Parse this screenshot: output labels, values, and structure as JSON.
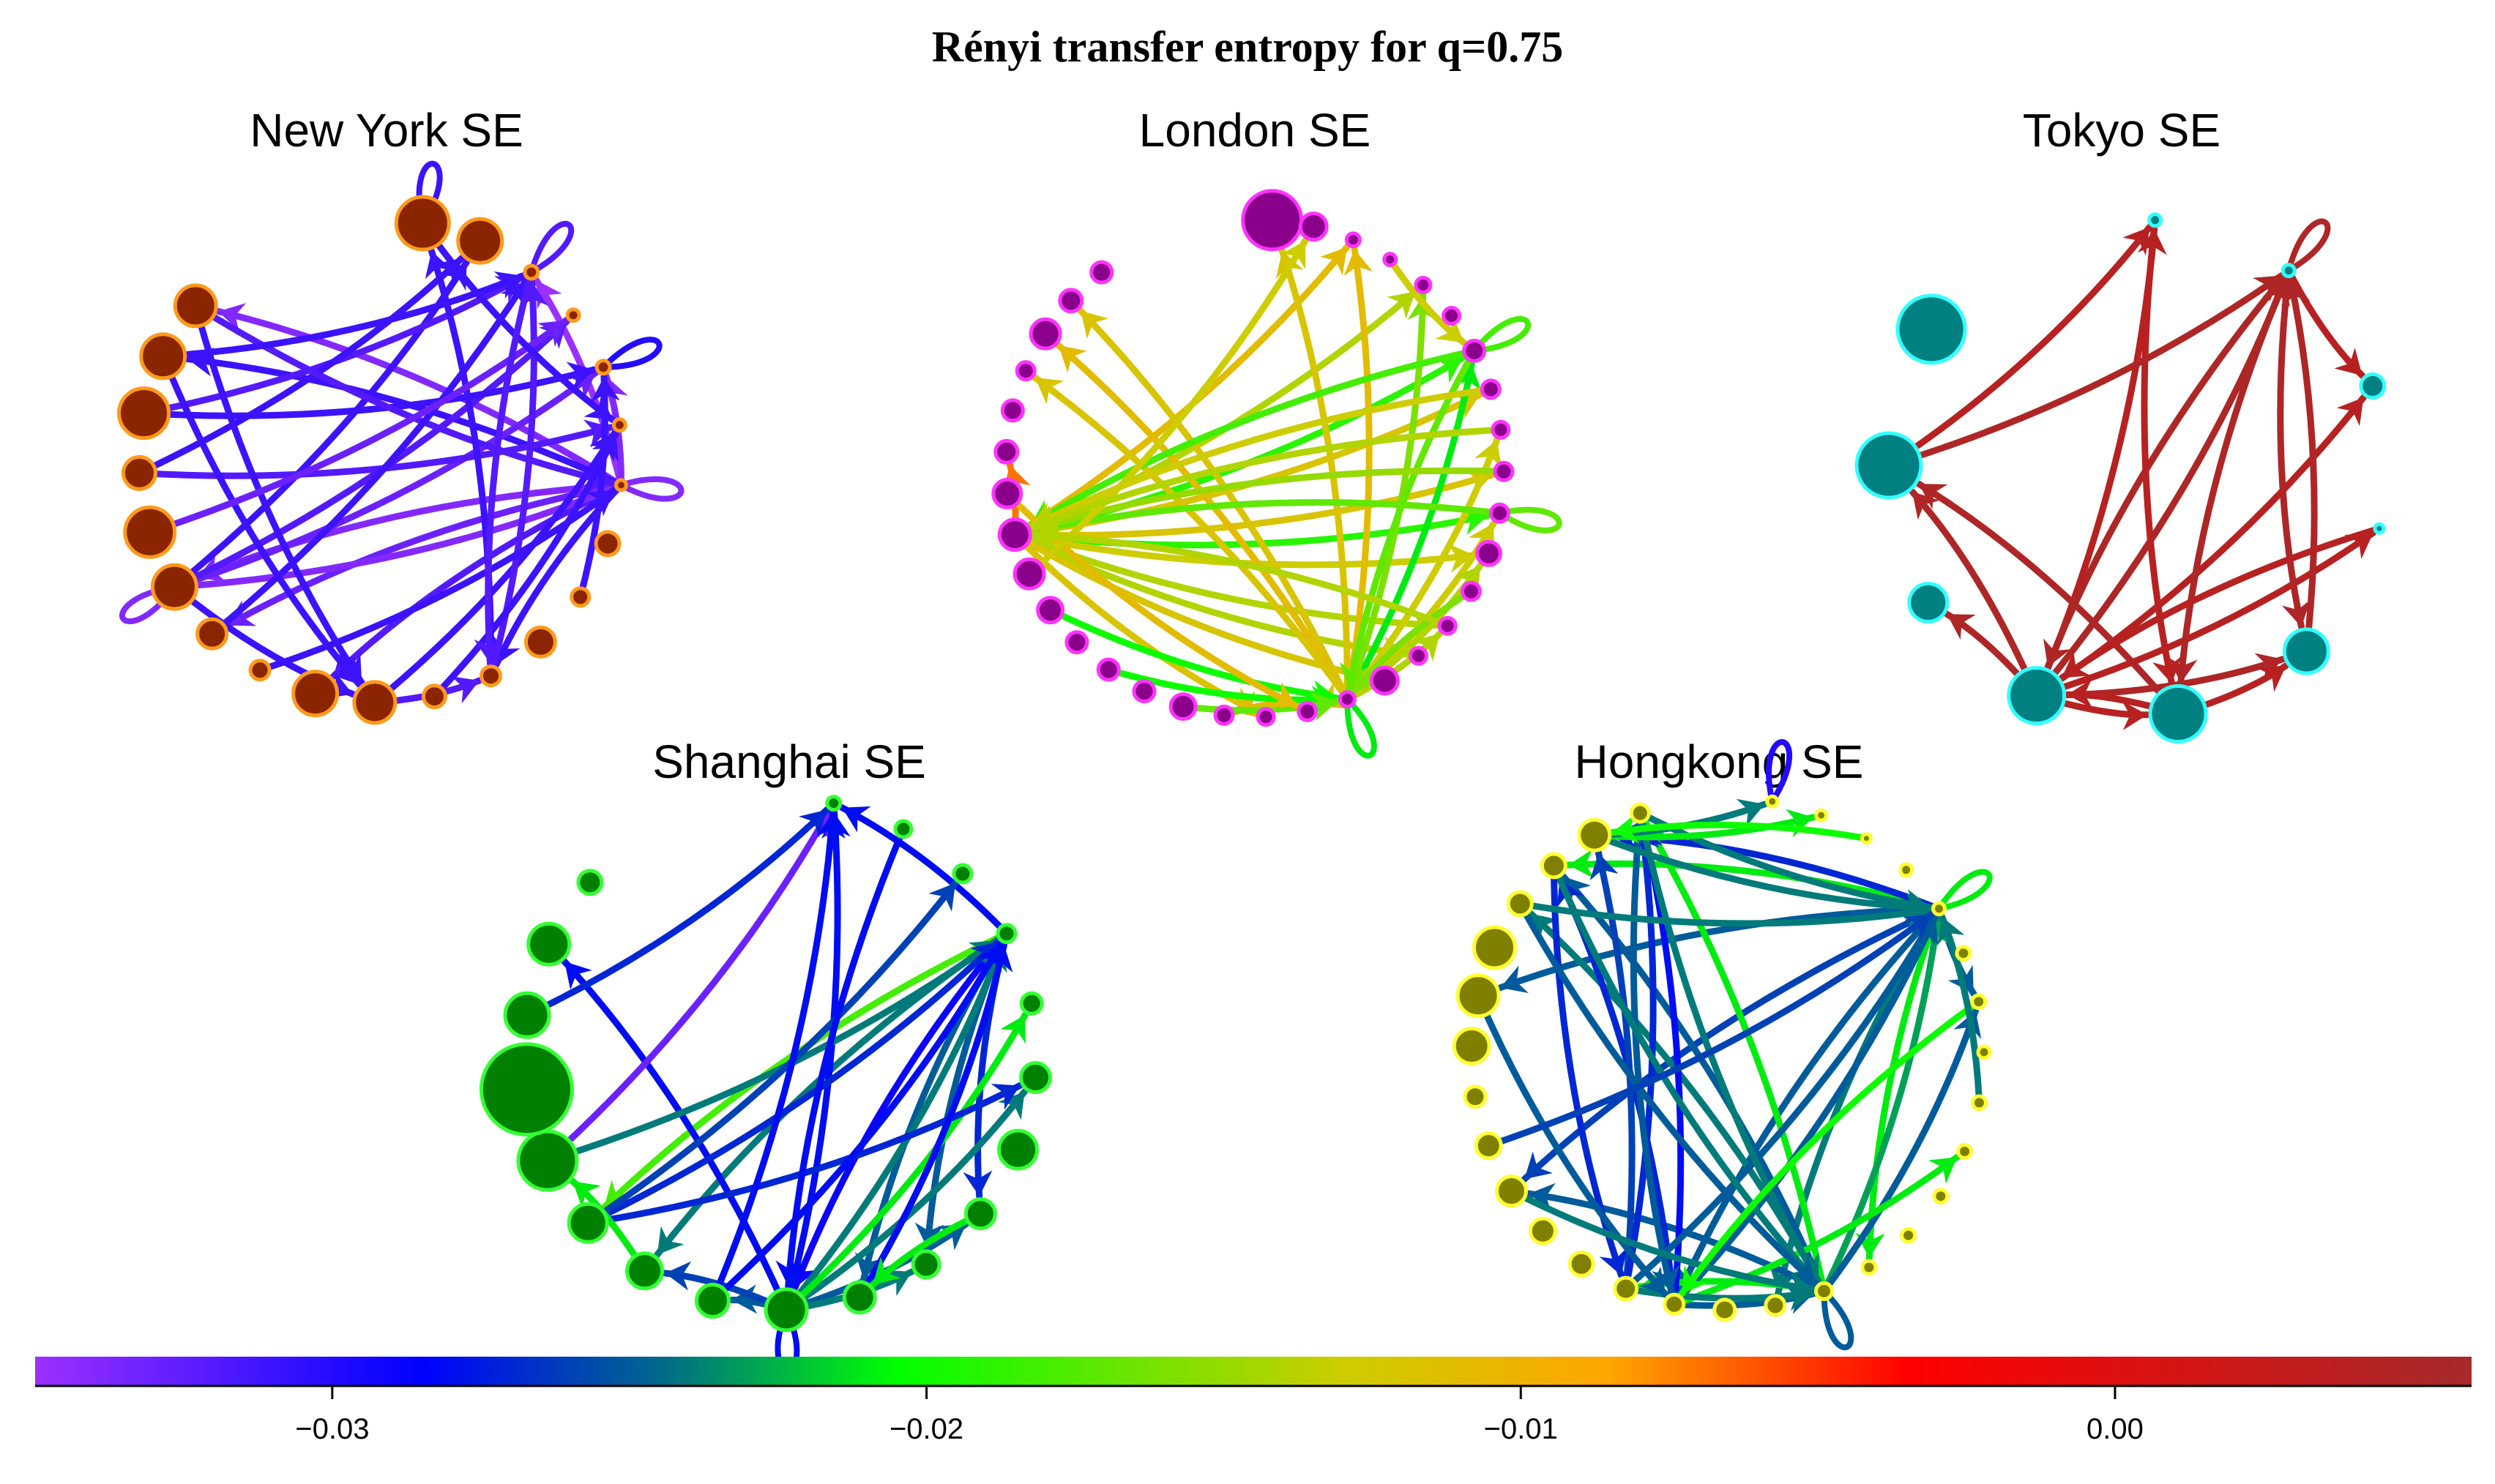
{
  "figure": {
    "title": "Rényi transfer entropy for q=0.75"
  },
  "panels": [
    {
      "name": "New York SE",
      "node_fill": "#8b2500",
      "node_stroke": "#ff9a1a",
      "nodes": [
        {
          "s": 36
        },
        {
          "s": 30
        },
        {
          "s": 9
        },
        {
          "s": 8
        },
        {
          "s": 9
        },
        {
          "s": 8
        },
        {
          "s": 7
        },
        {
          "s": 16
        },
        {
          "s": 12
        },
        {
          "s": 20
        },
        {
          "s": 13
        },
        {
          "s": 15
        },
        {
          "s": 28
        },
        {
          "s": 30
        },
        {
          "s": 13
        },
        {
          "s": 20
        },
        {
          "s": 30
        },
        {
          "s": 34
        },
        {
          "s": 22
        },
        {
          "s": 34
        },
        {
          "s": 30
        },
        {
          "s": 28
        }
      ],
      "edges": [
        {
          "f": 6,
          "t": 16,
          "v": -0.034
        },
        {
          "f": 6,
          "t": 21,
          "v": -0.034
        },
        {
          "f": 6,
          "t": 20,
          "v": -0.031
        },
        {
          "f": 6,
          "t": 15,
          "v": -0.033
        },
        {
          "f": 6,
          "t": 10,
          "v": -0.031
        },
        {
          "f": 6,
          "t": 2,
          "v": -0.035
        },
        {
          "f": 6,
          "t": 4,
          "v": -0.034
        },
        {
          "f": 6,
          "t": 13,
          "v": -0.032
        },
        {
          "f": 16,
          "t": 6,
          "v": -0.034
        },
        {
          "f": 16,
          "t": 4,
          "v": -0.033
        },
        {
          "f": 16,
          "t": 3,
          "v": -0.032
        },
        {
          "f": 16,
          "t": 12,
          "v": -0.031
        },
        {
          "f": 16,
          "t": 1,
          "v": -0.031
        },
        {
          "f": 19,
          "t": 4,
          "v": -0.031
        },
        {
          "f": 19,
          "t": 2,
          "v": -0.032
        },
        {
          "f": 18,
          "t": 1,
          "v": -0.031
        },
        {
          "f": 18,
          "t": 5,
          "v": -0.032
        },
        {
          "f": 21,
          "t": 6,
          "v": -0.032
        },
        {
          "f": 21,
          "t": 12,
          "v": -0.031
        },
        {
          "f": 20,
          "t": 2,
          "v": -0.031
        },
        {
          "f": 20,
          "t": 12,
          "v": -0.031
        },
        {
          "f": 12,
          "t": 5,
          "v": -0.031
        },
        {
          "f": 12,
          "t": 10,
          "v": -0.032
        },
        {
          "f": 10,
          "t": 0,
          "v": -0.031
        },
        {
          "f": 10,
          "t": 2,
          "v": -0.032
        },
        {
          "f": 11,
          "t": 5,
          "v": -0.031
        },
        {
          "f": 8,
          "t": 4,
          "v": -0.031
        },
        {
          "f": 15,
          "t": 2,
          "v": -0.031
        },
        {
          "f": 14,
          "t": 6,
          "v": -0.031
        },
        {
          "f": 17,
          "t": 3,
          "v": -0.033
        },
        {
          "f": 0,
          "t": 5,
          "v": -0.031
        },
        {
          "f": 2,
          "t": 10,
          "v": -0.032
        }
      ],
      "self_loops": [
        2,
        4,
        6,
        16,
        0
      ]
    },
    {
      "name": "London SE",
      "node_fill": "#8b008b",
      "node_stroke": "#ff33ff",
      "nodes": [
        {
          "s": 40
        },
        {
          "s": 18
        },
        {
          "s": 9
        },
        {
          "s": 8
        },
        {
          "s": 10
        },
        {
          "s": 11
        },
        {
          "s": 14
        },
        {
          "s": 12
        },
        {
          "s": 11
        },
        {
          "s": 12
        },
        {
          "s": 12
        },
        {
          "s": 16
        },
        {
          "s": 12
        },
        {
          "s": 11
        },
        {
          "s": 11
        },
        {
          "s": 18
        },
        {
          "s": 10
        },
        {
          "s": 12
        },
        {
          "s": 11
        },
        {
          "s": 12
        },
        {
          "s": 17
        },
        {
          "s": 14
        },
        {
          "s": 14
        },
        {
          "s": 14
        },
        {
          "s": 17
        },
        {
          "s": 20
        },
        {
          "s": 21
        },
        {
          "s": 19
        },
        {
          "s": 15
        },
        {
          "s": 14
        },
        {
          "s": 12
        },
        {
          "s": 20
        },
        {
          "s": 15
        },
        {
          "s": 14
        }
      ],
      "edges": [
        {
          "f": 26,
          "t": 2,
          "v": -0.011
        },
        {
          "f": 26,
          "t": 4,
          "v": -0.014
        },
        {
          "f": 26,
          "t": 10,
          "v": -0.019
        },
        {
          "f": 26,
          "t": 7,
          "v": -0.012
        },
        {
          "f": 26,
          "t": 9,
          "v": -0.012
        },
        {
          "f": 26,
          "t": 11,
          "v": -0.013
        },
        {
          "f": 26,
          "t": 13,
          "v": -0.014
        },
        {
          "f": 26,
          "t": 14,
          "v": -0.014
        },
        {
          "f": 26,
          "t": 15,
          "v": -0.012
        },
        {
          "f": 26,
          "t": 18,
          "v": -0.012
        },
        {
          "f": 26,
          "t": 6,
          "v": -0.019
        },
        {
          "f": 26,
          "t": 28,
          "v": -0.007
        },
        {
          "f": 16,
          "t": 6,
          "v": -0.021
        },
        {
          "f": 16,
          "t": 2,
          "v": -0.011
        },
        {
          "f": 16,
          "t": 0,
          "v": -0.012
        },
        {
          "f": 16,
          "t": 32,
          "v": -0.012
        },
        {
          "f": 16,
          "t": 31,
          "v": -0.011
        },
        {
          "f": 16,
          "t": 4,
          "v": -0.016
        },
        {
          "f": 16,
          "t": 30,
          "v": -0.012
        },
        {
          "f": 16,
          "t": 8,
          "v": -0.013
        },
        {
          "f": 16,
          "t": 10,
          "v": -0.013
        },
        {
          "f": 16,
          "t": 11,
          "v": -0.014
        },
        {
          "f": 16,
          "t": 13,
          "v": -0.014
        },
        {
          "f": 16,
          "t": 17,
          "v": -0.012
        },
        {
          "f": 16,
          "t": 19,
          "v": -0.011
        },
        {
          "f": 6,
          "t": 26,
          "v": -0.018
        },
        {
          "f": 6,
          "t": 16,
          "v": -0.017
        },
        {
          "f": 10,
          "t": 26,
          "v": -0.017
        },
        {
          "f": 9,
          "t": 26,
          "v": -0.015
        },
        {
          "f": 12,
          "t": 16,
          "v": -0.016
        },
        {
          "f": 24,
          "t": 16,
          "v": -0.02
        },
        {
          "f": 22,
          "t": 16,
          "v": -0.02
        },
        {
          "f": 20,
          "t": 16,
          "v": -0.017
        },
        {
          "f": 27,
          "t": 17,
          "v": -0.011
        },
        {
          "f": 25,
          "t": 1,
          "v": -0.013
        },
        {
          "f": 3,
          "t": 6,
          "v": -0.013
        },
        {
          "f": 7,
          "t": 26,
          "v": -0.013
        },
        {
          "f": 8,
          "t": 26,
          "v": -0.014
        },
        {
          "f": 13,
          "t": 26,
          "v": -0.014
        }
      ],
      "self_loops": [
        6,
        10,
        16
      ]
    },
    {
      "name": "Tokyo SE",
      "node_fill": "#008080",
      "node_stroke": "#33ffff",
      "nodes": [
        {
          "s": 8
        },
        {
          "s": 8
        },
        {
          "s": 16
        },
        {
          "s": 6
        },
        {
          "s": 30
        },
        {
          "s": 38
        },
        {
          "s": 38
        },
        {
          "s": 26
        },
        {
          "s": 44
        },
        {
          "s": 46
        }
      ],
      "edges": [
        {
          "f": 6,
          "t": 0,
          "v": 0.004
        },
        {
          "f": 6,
          "t": 1,
          "v": 0.005
        },
        {
          "f": 6,
          "t": 2,
          "v": 0.004
        },
        {
          "f": 6,
          "t": 3,
          "v": 0.004
        },
        {
          "f": 6,
          "t": 4,
          "v": 0.005
        },
        {
          "f": 6,
          "t": 5,
          "v": 0.004
        },
        {
          "f": 6,
          "t": 8,
          "v": 0.005
        },
        {
          "f": 6,
          "t": 7,
          "v": 0.005
        },
        {
          "f": 5,
          "t": 6,
          "v": 0.004
        },
        {
          "f": 5,
          "t": 8,
          "v": 0.005
        },
        {
          "f": 5,
          "t": 4,
          "v": 0.004
        },
        {
          "f": 1,
          "t": 6,
          "v": 0.005
        },
        {
          "f": 1,
          "t": 5,
          "v": 0.005
        },
        {
          "f": 1,
          "t": 2,
          "v": 0.004
        },
        {
          "f": 1,
          "t": 4,
          "v": 0.005
        },
        {
          "f": 0,
          "t": 5,
          "v": 0.004
        },
        {
          "f": 8,
          "t": 1,
          "v": 0.005
        },
        {
          "f": 8,
          "t": 0,
          "v": 0.004
        },
        {
          "f": 4,
          "t": 1,
          "v": 0.005
        },
        {
          "f": 3,
          "t": 6,
          "v": 0.004
        }
      ],
      "self_loops": [
        1
      ]
    },
    {
      "name": "Shanghai SE",
      "node_fill": "#008000",
      "node_stroke": "#33ff33",
      "nodes": [
        {
          "s": 9
        },
        {
          "s": 11
        },
        {
          "s": 12
        },
        {
          "s": 12
        },
        {
          "s": 14
        },
        {
          "s": 20
        },
        {
          "s": 26
        },
        {
          "s": 20
        },
        {
          "s": 18
        },
        {
          "s": 21
        },
        {
          "s": 28
        },
        {
          "s": 22
        },
        {
          "s": 24
        },
        {
          "s": 26
        },
        {
          "s": 40
        },
        {
          "s": 62
        },
        {
          "s": 30
        },
        {
          "s": 28
        },
        {
          "s": 16
        }
      ],
      "edges": [
        {
          "f": 3,
          "t": 0,
          "v": -0.028
        },
        {
          "f": 3,
          "t": 13,
          "v": -0.018
        },
        {
          "f": 3,
          "t": 10,
          "v": -0.029
        },
        {
          "f": 3,
          "t": 12,
          "v": -0.024
        },
        {
          "f": 3,
          "t": 7,
          "v": -0.027
        },
        {
          "f": 3,
          "t": 8,
          "v": -0.025
        },
        {
          "f": 3,
          "t": 9,
          "v": -0.025
        },
        {
          "f": 10,
          "t": 0,
          "v": -0.028
        },
        {
          "f": 10,
          "t": 3,
          "v": -0.024
        },
        {
          "f": 10,
          "t": 11,
          "v": -0.025
        },
        {
          "f": 10,
          "t": 12,
          "v": -0.026
        },
        {
          "f": 10,
          "t": 5,
          "v": -0.024
        },
        {
          "f": 10,
          "t": 17,
          "v": -0.028
        },
        {
          "f": 10,
          "t": 7,
          "v": -0.025
        },
        {
          "f": 10,
          "t": 8,
          "v": -0.024
        },
        {
          "f": 10,
          "t": 4,
          "v": -0.021
        },
        {
          "f": 14,
          "t": 0,
          "v": -0.033
        },
        {
          "f": 14,
          "t": 3,
          "v": -0.024
        },
        {
          "f": 13,
          "t": 3,
          "v": -0.027
        },
        {
          "f": 13,
          "t": 5,
          "v": -0.027
        },
        {
          "f": 13,
          "t": 2,
          "v": -0.026
        },
        {
          "f": 11,
          "t": 3,
          "v": -0.028
        },
        {
          "f": 11,
          "t": 0,
          "v": -0.028
        },
        {
          "f": 9,
          "t": 3,
          "v": -0.028
        },
        {
          "f": 1,
          "t": 10,
          "v": -0.028
        },
        {
          "f": 16,
          "t": 0,
          "v": -0.027
        },
        {
          "f": 12,
          "t": 14,
          "v": -0.021
        },
        {
          "f": 7,
          "t": 9,
          "v": -0.021
        }
      ],
      "self_loops": [
        10
      ]
    },
    {
      "name": "Hongkong SE",
      "node_fill": "#808000",
      "node_stroke": "#ffff33",
      "nodes": [
        {
          "s": 7
        },
        {
          "s": 7
        },
        {
          "s": 6
        },
        {
          "s": 8
        },
        {
          "s": 8
        },
        {
          "s": 9
        },
        {
          "s": 9
        },
        {
          "s": 8
        },
        {
          "s": 9
        },
        {
          "s": 9
        },
        {
          "s": 9
        },
        {
          "s": 9
        },
        {
          "s": 9
        },
        {
          "s": 11
        },
        {
          "s": 13
        },
        {
          "s": 14
        },
        {
          "s": 13
        },
        {
          "s": 15
        },
        {
          "s": 16
        },
        {
          "s": 17
        },
        {
          "s": 20
        },
        {
          "s": 17
        },
        {
          "s": 14
        },
        {
          "s": 24
        },
        {
          "s": 28
        },
        {
          "s": 28
        },
        {
          "s": 16
        },
        {
          "s": 16
        },
        {
          "s": 21
        },
        {
          "s": 12
        }
      ],
      "edges": [
        {
          "f": 4,
          "t": 27,
          "v": -0.021
        },
        {
          "f": 4,
          "t": 28,
          "v": -0.027
        },
        {
          "f": 4,
          "t": 20,
          "v": -0.026
        },
        {
          "f": 4,
          "t": 24,
          "v": -0.025
        },
        {
          "f": 4,
          "t": 16,
          "v": -0.025
        },
        {
          "f": 4,
          "t": 14,
          "v": -0.024
        },
        {
          "f": 4,
          "t": 12,
          "v": -0.021
        },
        {
          "f": 4,
          "t": 6,
          "v": -0.025
        },
        {
          "f": 13,
          "t": 27,
          "v": -0.025
        },
        {
          "f": 13,
          "t": 26,
          "v": -0.024
        },
        {
          "f": 13,
          "t": 29,
          "v": -0.021
        },
        {
          "f": 13,
          "t": 20,
          "v": -0.025
        },
        {
          "f": 13,
          "t": 17,
          "v": -0.021
        },
        {
          "f": 13,
          "t": 4,
          "v": -0.023
        },
        {
          "f": 13,
          "t": 6,
          "v": -0.025
        },
        {
          "f": 16,
          "t": 29,
          "v": -0.028
        },
        {
          "f": 16,
          "t": 4,
          "v": -0.025
        },
        {
          "f": 16,
          "t": 13,
          "v": -0.025
        },
        {
          "f": 16,
          "t": 27,
          "v": -0.027
        },
        {
          "f": 16,
          "t": 9,
          "v": -0.021
        },
        {
          "f": 17,
          "t": 28,
          "v": -0.026
        },
        {
          "f": 17,
          "t": 29,
          "v": -0.027
        },
        {
          "f": 17,
          "t": 13,
          "v": -0.024
        },
        {
          "f": 17,
          "t": 4,
          "v": -0.025
        },
        {
          "f": 29,
          "t": 16,
          "v": -0.025
        },
        {
          "f": 29,
          "t": 13,
          "v": -0.024
        },
        {
          "f": 29,
          "t": 4,
          "v": -0.024
        },
        {
          "f": 28,
          "t": 4,
          "v": -0.024
        },
        {
          "f": 28,
          "t": 1,
          "v": -0.021
        },
        {
          "f": 28,
          "t": 0,
          "v": -0.024
        },
        {
          "f": 27,
          "t": 13,
          "v": -0.024
        },
        {
          "f": 27,
          "t": 17,
          "v": -0.027
        },
        {
          "f": 26,
          "t": 4,
          "v": -0.024
        },
        {
          "f": 26,
          "t": 13,
          "v": -0.025
        },
        {
          "f": 24,
          "t": 16,
          "v": -0.025
        },
        {
          "f": 20,
          "t": 13,
          "v": -0.024
        },
        {
          "f": 21,
          "t": 4,
          "v": -0.026
        },
        {
          "f": 6,
          "t": 16,
          "v": -0.02
        },
        {
          "f": 8,
          "t": 4,
          "v": -0.024
        },
        {
          "f": 2,
          "t": 28,
          "v": -0.02
        }
      ],
      "self_loops": [
        0,
        4,
        13
      ]
    }
  ],
  "colorbar": {
    "min": -0.035,
    "max": 0.006,
    "ticks": [
      -0.03,
      -0.02,
      -0.01,
      0.0
    ],
    "tick_labels": [
      "−0.03",
      "−0.02",
      "−0.01",
      "0.00"
    ],
    "stops": [
      {
        "v": -0.035,
        "c": "#9b30ff"
      },
      {
        "v": -0.0285,
        "c": "#0000ff"
      },
      {
        "v": -0.0245,
        "c": "#00688b"
      },
      {
        "v": -0.0205,
        "c": "#00ff00"
      },
      {
        "v": -0.013,
        "c": "#cdcd00"
      },
      {
        "v": -0.0085,
        "c": "#ffa500"
      },
      {
        "v": -0.0035,
        "c": "#ff0000"
      },
      {
        "v": 0.006,
        "c": "#a52a2a"
      }
    ]
  }
}
